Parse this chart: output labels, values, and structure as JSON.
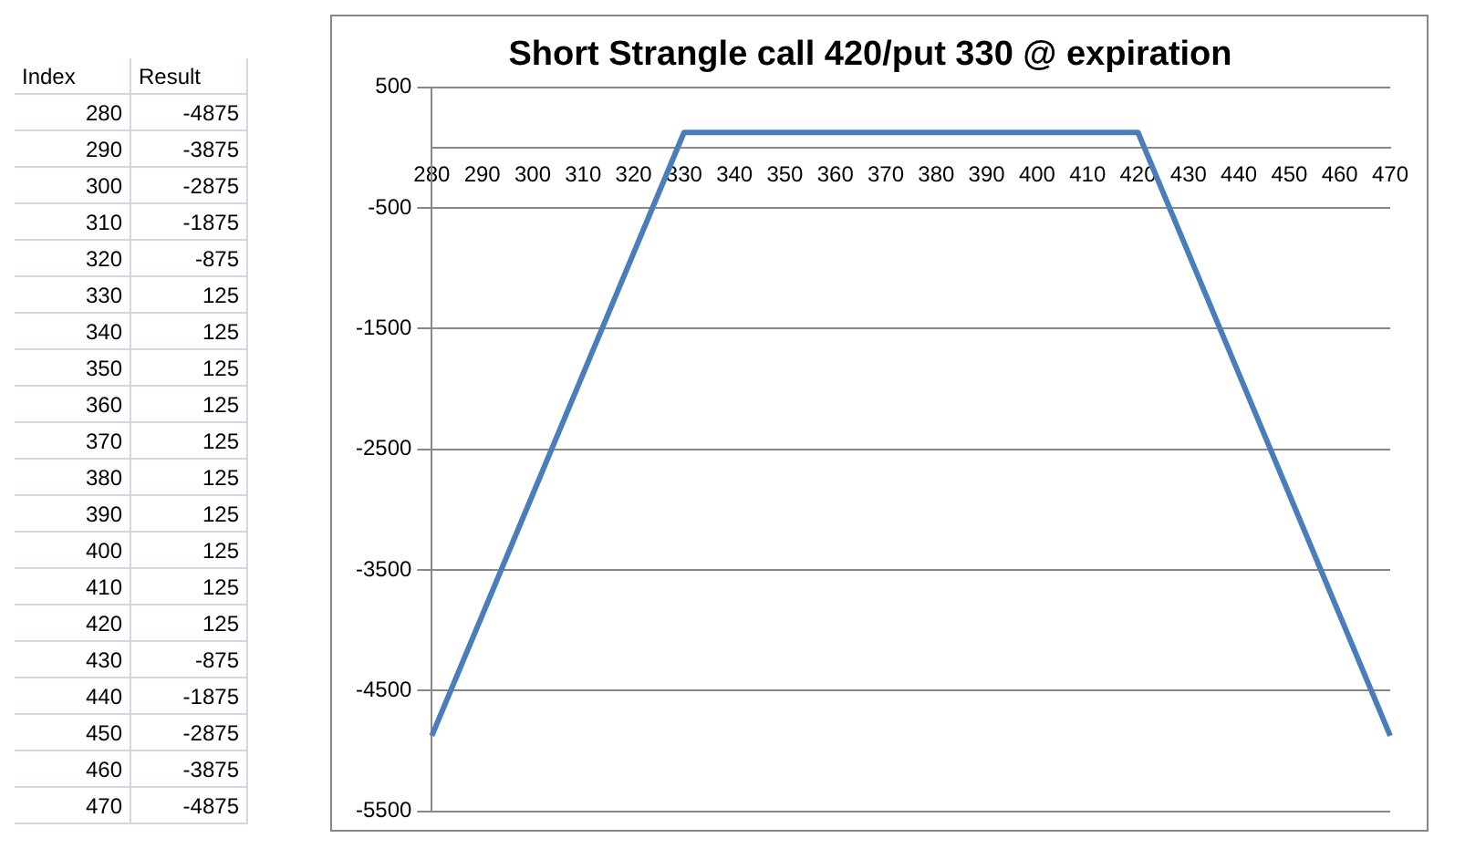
{
  "chart_data": [
    {
      "type": "heatmap",
      "ylabel": "Index",
      "categories": [
        "Result"
      ],
      "y_categories": [
        "280",
        "290",
        "300",
        "310",
        "320",
        "330",
        "340",
        "350",
        "360",
        "370",
        "380",
        "390",
        "400",
        "410",
        "420",
        "430",
        "440",
        "450",
        "460",
        "470"
      ],
      "cells": [
        [
          -4875
        ],
        [
          -3875
        ],
        [
          -2875
        ],
        [
          -1875
        ],
        [
          -875
        ],
        [
          125
        ],
        [
          125
        ],
        [
          125
        ],
        [
          125
        ],
        [
          125
        ],
        [
          125
        ],
        [
          125
        ],
        [
          125
        ],
        [
          125
        ],
        [
          125
        ],
        [
          -875
        ],
        [
          -1875
        ],
        [
          -2875
        ],
        [
          -3875
        ],
        [
          -4875
        ]
      ],
      "data_labels": true
    },
    {
      "type": "line",
      "title": "Short Strangle call 420/put 330 @ expiration",
      "categories": [
        "280",
        "290",
        "300",
        "310",
        "320",
        "330",
        "340",
        "350",
        "360",
        "370",
        "380",
        "390",
        "400",
        "410",
        "420",
        "430",
        "440",
        "450",
        "460",
        "470"
      ],
      "series": [
        {
          "color": "#4a7ebb",
          "values": [
            -4875,
            -3875,
            -2875,
            -1875,
            -875,
            125,
            125,
            125,
            125,
            125,
            125,
            125,
            125,
            125,
            125,
            -875,
            -1875,
            -2875,
            -3875,
            -4875
          ]
        }
      ],
      "ylim": [
        -5500,
        500
      ],
      "yticks": [
        -5500,
        -4500,
        -3500,
        -2500,
        -1500,
        -500,
        500
      ],
      "grid": "y",
      "legend": false,
      "marker": "none",
      "line_style": "solid"
    }
  ]
}
